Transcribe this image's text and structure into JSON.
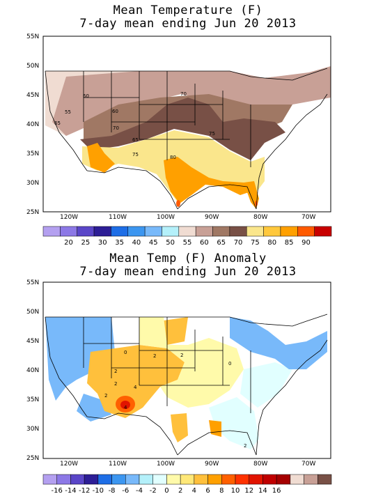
{
  "panels": [
    {
      "title_line1": "Mean Temperature (F)",
      "title_line2": "7-day mean ending Jun 20 2013",
      "y_ticks": [
        "55N",
        "50N",
        "45N",
        "40N",
        "35N",
        "30N",
        "25N"
      ],
      "x_ticks": [
        "120W",
        "110W",
        "100W",
        "90W",
        "80W",
        "70W"
      ],
      "colorbar": {
        "labels": [
          "20",
          "25",
          "30",
          "35",
          "40",
          "45",
          "50",
          "55",
          "60",
          "65",
          "70",
          "75",
          "80",
          "85",
          "90"
        ],
        "colors": [
          "#b4a0f0",
          "#8c78e6",
          "#5a46c8",
          "#2d1e96",
          "#1e6ee6",
          "#3c96f0",
          "#78b9fa",
          "#b4f0fa",
          "#f0dcd2",
          "#c8a096",
          "#a07864",
          "#785046",
          "#fae68c",
          "#ffc83c",
          "#ffa000",
          "#ff5a00",
          "#c80000"
        ]
      },
      "contour_labels": [
        "60",
        "55",
        "65",
        "60",
        "70",
        "70",
        "65",
        "75",
        "75",
        "80"
      ],
      "regions": [
        {
          "name": "60-65 northwest",
          "color": "#f0dcd2"
        },
        {
          "name": "65-70 northern plains",
          "color": "#c8a096"
        },
        {
          "name": "70-75 central",
          "color": "#a07864"
        },
        {
          "name": "75-80 band",
          "color": "#785046"
        },
        {
          "name": "80-85 south",
          "color": "#fae68c"
        },
        {
          "name": "85-90 texas",
          "color": "#ffa000"
        }
      ]
    },
    {
      "title_line1": "Mean Temp (F) Anomaly",
      "title_line2": "7-day mean ending Jun 20 2013",
      "y_ticks": [
        "55N",
        "50N",
        "45N",
        "40N",
        "35N",
        "30N",
        "25N"
      ],
      "x_ticks": [
        "120W",
        "110W",
        "100W",
        "90W",
        "80W",
        "70W"
      ],
      "colorbar": {
        "labels": [
          "-16",
          "-14",
          "-12",
          "-10",
          "-8",
          "-6",
          "-4",
          "-2",
          "0",
          "2",
          "4",
          "6",
          "8",
          "10",
          "12",
          "14",
          "16"
        ],
        "colors": [
          "#b4a0f0",
          "#8c78e6",
          "#5a46c8",
          "#2d1e96",
          "#1e6ee6",
          "#3c96f0",
          "#78b9fa",
          "#b4f0fa",
          "#e1ffff",
          "#fffaaa",
          "#ffe878",
          "#ffc03c",
          "#ffa000",
          "#ff6000",
          "#ff3200",
          "#e11400",
          "#c00000",
          "#a50000",
          "#f0dcd2",
          "#c8a096",
          "#785046"
        ]
      },
      "contour_labels": [
        "0",
        "2",
        "2",
        "2",
        "4",
        "2",
        "2",
        "4",
        "0",
        "2"
      ],
      "regions": [
        {
          "name": "cool northwest",
          "color": "#78b9fa"
        },
        {
          "name": "cool northeast",
          "color": "#78b9fa"
        },
        {
          "name": "warm west",
          "color": "#ffc03c"
        },
        {
          "name": "near normal plains",
          "color": "#fffaaa"
        },
        {
          "name": "hot southwest",
          "color": "#ff6000"
        }
      ]
    }
  ]
}
